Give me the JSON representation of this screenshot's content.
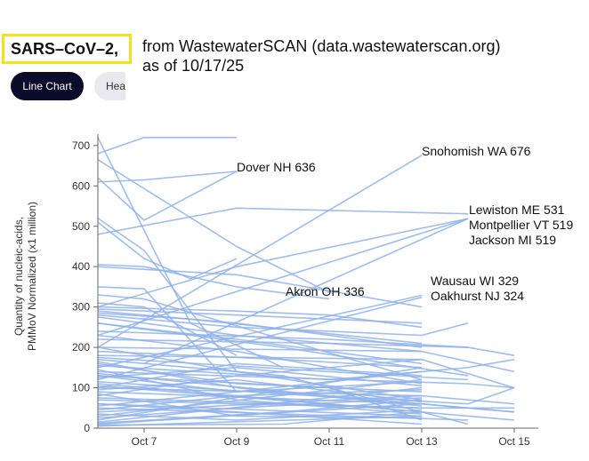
{
  "title": {
    "highlight": "SARS–CoV–2,",
    "rest_line1": "from WastewaterSCAN (data.wastewaterscan.org)",
    "rest_line2": "as of 10/17/25"
  },
  "tabs": [
    {
      "label": "Line Chart",
      "active": true
    },
    {
      "label": "Hea",
      "active": false
    }
  ],
  "colors": {
    "line": "#8fb1ea",
    "axis": "#666666",
    "tab_active": "#0b0b2a",
    "highlight_border": "#f2e21b"
  },
  "chart_data": {
    "type": "line",
    "ylabel_line1": "Quantity of nucleic-acids,",
    "ylabel_line2": "PMMoV Normalized (x1 million)",
    "ylim": [
      0,
      720
    ],
    "yticks": [
      0,
      100,
      200,
      300,
      400,
      500,
      600,
      700
    ],
    "x_start": "2025-10-06",
    "x_end": "2025-10-16",
    "xticks": [
      {
        "date": "2025-10-07",
        "label": "Oct 7"
      },
      {
        "date": "2025-10-09",
        "label": "Oct 9"
      },
      {
        "date": "2025-10-11",
        "label": "Oct 11"
      },
      {
        "date": "2025-10-13",
        "label": "Oct 13"
      },
      {
        "date": "2025-10-15",
        "label": "Oct 15"
      }
    ],
    "grid": false,
    "annotations": [
      {
        "text": "Snohomish WA 676",
        "date": "2025-10-13",
        "value": 676
      },
      {
        "text": "Dover NH 636",
        "date": "2025-10-09",
        "value": 636
      },
      {
        "text": "Lewiston ME 531",
        "date": "2025-10-14",
        "value": 531
      },
      {
        "text": "Montpellier VT 519",
        "date": "2025-10-14",
        "value": 519
      },
      {
        "text": "Jackson MI 519",
        "date": "2025-10-14",
        "value": 519
      },
      {
        "text": "Wausau WI 329",
        "date": "2025-10-13",
        "value": 329
      },
      {
        "text": "Oakhurst NJ 324",
        "date": "2025-10-13",
        "value": 324
      },
      {
        "text": "Akron OH 336",
        "date": "2025-10-11",
        "value": 336
      }
    ],
    "series": [
      {
        "x": [
          "2025-10-06",
          "2025-10-13"
        ],
        "values": [
          200,
          676
        ]
      },
      {
        "x": [
          "2025-10-06",
          "2025-10-07",
          "2025-10-09"
        ],
        "values": [
          610,
          615,
          636
        ]
      },
      {
        "x": [
          "2025-10-06",
          "2025-10-07",
          "2025-10-09"
        ],
        "values": [
          680,
          720,
          720
        ]
      },
      {
        "x": [
          "2025-10-06",
          "2025-10-07",
          "2025-10-09"
        ],
        "values": [
          620,
          515,
          636
        ]
      },
      {
        "x": [
          "2025-10-06",
          "2025-10-09",
          "2025-10-14"
        ],
        "values": [
          480,
          545,
          531
        ]
      },
      {
        "x": [
          "2025-10-06",
          "2025-10-09",
          "2025-10-14"
        ],
        "values": [
          300,
          400,
          519
        ]
      },
      {
        "x": [
          "2025-10-06",
          "2025-10-14"
        ],
        "values": [
          230,
          519
        ]
      },
      {
        "x": [
          "2025-10-07",
          "2025-10-14"
        ],
        "values": [
          160,
          519
        ]
      },
      {
        "x": [
          "2025-10-06",
          "2025-10-09",
          "2025-10-11"
        ],
        "values": [
          665,
          450,
          336
        ]
      },
      {
        "x": [
          "2025-10-06",
          "2025-10-13"
        ],
        "values": [
          150,
          329
        ]
      },
      {
        "x": [
          "2025-10-06",
          "2025-10-13"
        ],
        "values": [
          120,
          324
        ]
      },
      {
        "x": [
          "2025-10-06",
          "2025-10-08",
          "2025-10-10"
        ],
        "values": [
          725,
          260,
          150
        ]
      },
      {
        "x": [
          "2025-10-06",
          "2025-10-07",
          "2025-10-09"
        ],
        "values": [
          520,
          440,
          140
        ]
      },
      {
        "x": [
          "2025-10-06",
          "2025-10-07",
          "2025-10-09",
          "2025-10-11"
        ],
        "values": [
          405,
          400,
          350,
          320
        ]
      },
      {
        "x": [
          "2025-10-06",
          "2025-10-09",
          "2025-10-13"
        ],
        "values": [
          400,
          380,
          300
        ]
      },
      {
        "x": [
          "2025-10-06",
          "2025-10-07",
          "2025-10-09"
        ],
        "values": [
          350,
          345,
          90
        ]
      },
      {
        "x": [
          "2025-10-06",
          "2025-10-07",
          "2025-10-08",
          "2025-10-09"
        ],
        "values": [
          510,
          420,
          370,
          420
        ]
      },
      {
        "x": [
          "2025-10-06",
          "2025-10-09",
          "2025-10-11",
          "2025-10-13"
        ],
        "values": [
          300,
          290,
          280,
          250
        ]
      },
      {
        "x": [
          "2025-10-06",
          "2025-10-09",
          "2025-10-13"
        ],
        "values": [
          290,
          260,
          200
        ]
      },
      {
        "x": [
          "2025-10-06",
          "2025-10-09",
          "2025-10-13",
          "2025-10-14"
        ],
        "values": [
          280,
          250,
          230,
          260
        ]
      },
      {
        "x": [
          "2025-10-06",
          "2025-10-10",
          "2025-10-14"
        ],
        "values": [
          260,
          200,
          130
        ]
      },
      {
        "x": [
          "2025-10-06",
          "2025-10-11",
          "2025-10-14"
        ],
        "values": [
          240,
          220,
          200
        ]
      },
      {
        "x": [
          "2025-10-06",
          "2025-10-11",
          "2025-10-14",
          "2025-10-15"
        ],
        "values": [
          220,
          210,
          200,
          180
        ]
      },
      {
        "x": [
          "2025-10-06",
          "2025-10-13",
          "2025-10-15"
        ],
        "values": [
          200,
          190,
          140
        ]
      },
      {
        "x": [
          "2025-10-06",
          "2025-10-13",
          "2025-10-15"
        ],
        "values": [
          180,
          170,
          100
        ]
      },
      {
        "x": [
          "2025-10-06",
          "2025-10-10",
          "2025-10-14"
        ],
        "values": [
          170,
          130,
          10
        ]
      },
      {
        "x": [
          "2025-10-06",
          "2025-10-14",
          "2025-10-15"
        ],
        "values": [
          140,
          110,
          100
        ]
      },
      {
        "x": [
          "2025-10-06",
          "2025-10-11",
          "2025-10-13"
        ],
        "values": [
          130,
          100,
          20
        ]
      },
      {
        "x": [
          "2025-10-06",
          "2025-10-13"
        ],
        "values": [
          110,
          40
        ]
      },
      {
        "x": [
          "2025-10-06",
          "2025-10-13",
          "2025-10-15"
        ],
        "values": [
          100,
          80,
          60
        ]
      },
      {
        "x": [
          "2025-10-06",
          "2025-10-13",
          "2025-10-15"
        ],
        "values": [
          90,
          60,
          40
        ]
      },
      {
        "x": [
          "2025-10-06",
          "2025-10-13",
          "2025-10-15"
        ],
        "values": [
          75,
          50,
          50
        ]
      },
      {
        "x": [
          "2025-10-06",
          "2025-10-13"
        ],
        "values": [
          60,
          30
        ]
      },
      {
        "x": [
          "2025-10-06",
          "2025-10-14"
        ],
        "values": [
          50,
          20
        ]
      },
      {
        "x": [
          "2025-10-06",
          "2025-10-13"
        ],
        "values": [
          40,
          80
        ]
      },
      {
        "x": [
          "2025-10-06",
          "2025-10-13"
        ],
        "values": [
          30,
          120
        ]
      },
      {
        "x": [
          "2025-10-06",
          "2025-10-13"
        ],
        "values": [
          20,
          150
        ]
      },
      {
        "x": [
          "2025-10-06",
          "2025-10-13"
        ],
        "values": [
          15,
          100
        ]
      },
      {
        "x": [
          "2025-10-06",
          "2025-10-13"
        ],
        "values": [
          10,
          60
        ]
      },
      {
        "x": [
          "2025-10-06",
          "2025-10-13"
        ],
        "values": [
          5,
          30
        ]
      },
      {
        "x": [
          "2025-10-06",
          "2025-10-07",
          "2025-10-13"
        ],
        "values": [
          330,
          320,
          120
        ]
      },
      {
        "x": [
          "2025-10-06",
          "2025-10-07",
          "2025-10-09"
        ],
        "values": [
          310,
          300,
          180
        ]
      },
      {
        "x": [
          "2025-10-06",
          "2025-10-09",
          "2025-10-13"
        ],
        "values": [
          260,
          220,
          160
        ]
      },
      {
        "x": [
          "2025-10-06",
          "2025-10-09",
          "2025-10-13"
        ],
        "values": [
          230,
          190,
          110
        ]
      },
      {
        "x": [
          "2025-10-06",
          "2025-10-09",
          "2025-10-13"
        ],
        "values": [
          200,
          140,
          70
        ]
      },
      {
        "x": [
          "2025-10-06",
          "2025-10-09",
          "2025-10-13"
        ],
        "values": [
          160,
          110,
          90
        ]
      },
      {
        "x": [
          "2025-10-06",
          "2025-10-09",
          "2025-10-13"
        ],
        "values": [
          130,
          90,
          140
        ]
      },
      {
        "x": [
          "2025-10-06",
          "2025-10-09",
          "2025-10-13"
        ],
        "values": [
          100,
          160,
          130
        ]
      },
      {
        "x": [
          "2025-10-06",
          "2025-10-09",
          "2025-10-13"
        ],
        "values": [
          80,
          130,
          170
        ]
      },
      {
        "x": [
          "2025-10-06",
          "2025-10-09",
          "2025-10-13"
        ],
        "values": [
          70,
          60,
          50
        ]
      },
      {
        "x": [
          "2025-10-06",
          "2025-10-09",
          "2025-10-13"
        ],
        "values": [
          60,
          40,
          10
        ]
      },
      {
        "x": [
          "2025-10-06",
          "2025-10-09",
          "2025-10-13"
        ],
        "values": [
          45,
          80,
          95
        ]
      },
      {
        "x": [
          "2025-10-06",
          "2025-10-09",
          "2025-10-13"
        ],
        "values": [
          35,
          20,
          45
        ]
      },
      {
        "x": [
          "2025-10-06",
          "2025-10-09",
          "2025-10-13"
        ],
        "values": [
          25,
          50,
          75
        ]
      },
      {
        "x": [
          "2025-10-06",
          "2025-10-09",
          "2025-10-13"
        ],
        "values": [
          165,
          100,
          55
        ]
      },
      {
        "x": [
          "2025-10-06",
          "2025-10-09",
          "2025-10-13"
        ],
        "values": [
          145,
          70,
          35
        ]
      },
      {
        "x": [
          "2025-10-06",
          "2025-10-09",
          "2025-10-13"
        ],
        "values": [
          125,
          150,
          105
        ]
      },
      {
        "x": [
          "2025-10-06",
          "2025-10-09",
          "2025-10-13"
        ],
        "values": [
          95,
          120,
          65
        ]
      },
      {
        "x": [
          "2025-10-06",
          "2025-10-09",
          "2025-10-13"
        ],
        "values": [
          85,
          30,
          25
        ]
      },
      {
        "x": [
          "2025-10-06",
          "2025-10-09",
          "2025-10-13"
        ],
        "values": [
          55,
          90,
          115
        ]
      },
      {
        "x": [
          "2025-10-06",
          "2025-10-09",
          "2025-10-13"
        ],
        "values": [
          295,
          280,
          260
        ]
      },
      {
        "x": [
          "2025-10-06",
          "2025-10-08",
          "2025-10-13"
        ],
        "values": [
          285,
          270,
          210
        ]
      },
      {
        "x": [
          "2025-10-06",
          "2025-10-09",
          "2025-10-13"
        ],
        "values": [
          275,
          230,
          190
        ]
      },
      {
        "x": [
          "2025-10-06",
          "2025-10-10",
          "2025-10-13"
        ],
        "values": [
          190,
          170,
          150
        ]
      },
      {
        "x": [
          "2025-10-06",
          "2025-10-11",
          "2025-10-14"
        ],
        "values": [
          175,
          140,
          120
        ]
      },
      {
        "x": [
          "2025-10-06",
          "2025-10-11",
          "2025-10-14",
          "2025-10-15"
        ],
        "values": [
          155,
          120,
          150,
          170
        ]
      },
      {
        "x": [
          "2025-10-06",
          "2025-10-11",
          "2025-10-14",
          "2025-10-15"
        ],
        "values": [
          135,
          80,
          60,
          100
        ]
      },
      {
        "x": [
          "2025-10-06",
          "2025-10-12",
          "2025-10-15"
        ],
        "values": [
          115,
          70,
          40
        ]
      },
      {
        "x": [
          "2025-10-06",
          "2025-10-12",
          "2025-10-15"
        ],
        "values": [
          105,
          50,
          20
        ]
      },
      {
        "x": [
          "2025-10-06",
          "2025-10-10",
          "2025-10-13"
        ],
        "values": [
          12,
          40,
          70
        ]
      },
      {
        "x": [
          "2025-10-06",
          "2025-10-10",
          "2025-10-13"
        ],
        "values": [
          8,
          10,
          40
        ]
      }
    ]
  }
}
